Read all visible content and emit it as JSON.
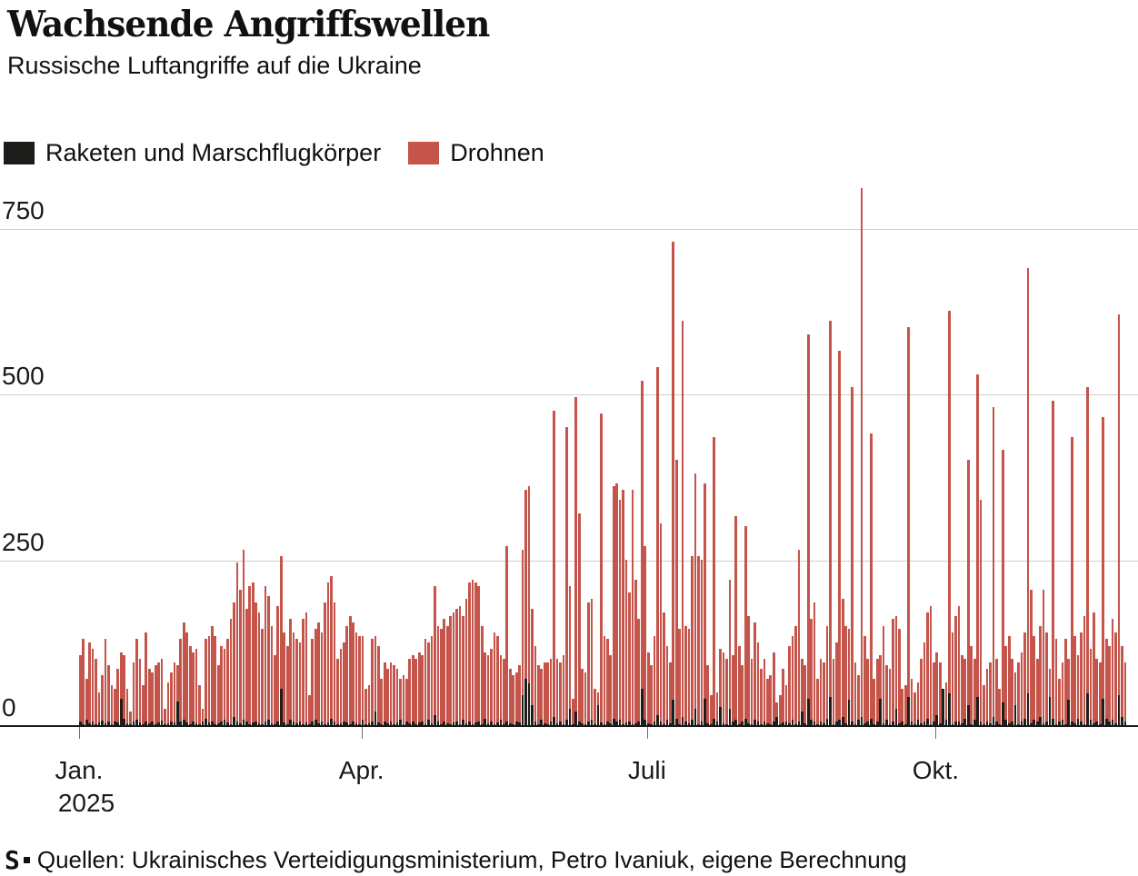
{
  "header": {
    "title": "Wachsende Angriffswellen",
    "subtitle": "Russische Luftangriffe auf die Ukraine"
  },
  "legend": {
    "items": [
      {
        "label": "Raketen und Marschflugkörper",
        "color": "#1d1d1b"
      },
      {
        "label": "Drohnen",
        "color": "#c5544b"
      }
    ]
  },
  "footer": {
    "logo": "S",
    "source_text": "Quellen: Ukrainisches Verteidigungsministerium, Petro Ivaniuk, eigene Berechnung"
  },
  "colors": {
    "drones": "#c5544b",
    "missiles": "#1d1d1b",
    "gridline": "#cfcfca",
    "axis": "#1a1a1a"
  },
  "chart_data": {
    "type": "bar",
    "title": "Wachsende Angriffswellen",
    "subtitle": "Russische Luftangriffe auf die Ukraine",
    "x_axis": {
      "unit": "day",
      "start": "2025-01-01",
      "end": "2025-11-30",
      "tick_labels": [
        "Jan.",
        "Apr.",
        "Juli",
        "Okt."
      ],
      "tick_day_indices": [
        0,
        90,
        181,
        273
      ],
      "year_label": "2025"
    },
    "y_axis": {
      "ticks": [
        0,
        250,
        500,
        750
      ],
      "max": 830,
      "label": ""
    },
    "grid": true,
    "legend_position": "top",
    "series": [
      {
        "name": "Raketen und Marschflugkörper",
        "type": "bar",
        "color": "#1d1d1b",
        "values": [
          5,
          2,
          8,
          3,
          6,
          2,
          4,
          7,
          3,
          5,
          2,
          6,
          4,
          40,
          10,
          3,
          2,
          5,
          8,
          4,
          2,
          6,
          3,
          5,
          2,
          4,
          7,
          2,
          3,
          5,
          4,
          36,
          5,
          8,
          4,
          2,
          6,
          3,
          2,
          5,
          10,
          4,
          6,
          2,
          3,
          5,
          8,
          4,
          2,
          12,
          6,
          3,
          8,
          5,
          2,
          4,
          6,
          3,
          2,
          5,
          8,
          3,
          2,
          6,
          55,
          4,
          2,
          8,
          5,
          3,
          6,
          2,
          4,
          2,
          5,
          8,
          3,
          6,
          2,
          4,
          10,
          5,
          2,
          3,
          6,
          4,
          2,
          5,
          3,
          2,
          8,
          2,
          3,
          5,
          20,
          4,
          2,
          6,
          3,
          5,
          2,
          4,
          8,
          2,
          5,
          3,
          6,
          2,
          4,
          5,
          2,
          8,
          3,
          15,
          5,
          2,
          6,
          3,
          2,
          4,
          5,
          2,
          8,
          3,
          6,
          2,
          4,
          5,
          2,
          10,
          3,
          6,
          2,
          4,
          8,
          2,
          5,
          3,
          2,
          6,
          4,
          45,
          70,
          63,
          30,
          5,
          2,
          8,
          3,
          2,
          6,
          12,
          3,
          5,
          2,
          8,
          25,
          2,
          20,
          6,
          3,
          2,
          5,
          8,
          2,
          30,
          4,
          2,
          6,
          3,
          10,
          5,
          8,
          2,
          4,
          6,
          2,
          3,
          5,
          55,
          8,
          3,
          2,
          6,
          15,
          5,
          2,
          8,
          3,
          38,
          10,
          2,
          12,
          5,
          3,
          8,
          25,
          2,
          6,
          40,
          3,
          2,
          10,
          5,
          27,
          3,
          2,
          25,
          6,
          8,
          2,
          5,
          10,
          3,
          2,
          8,
          5,
          2,
          6,
          3,
          2,
          5,
          12,
          2,
          4,
          6,
          3,
          8,
          2,
          5,
          20,
          3,
          40,
          8,
          5,
          2,
          6,
          3,
          10,
          43,
          2,
          5,
          8,
          12,
          3,
          38,
          5,
          2,
          8,
          13,
          3,
          6,
          10,
          2,
          5,
          40,
          3,
          8,
          2,
          5,
          25,
          3,
          6,
          2,
          43,
          5,
          2,
          8,
          3,
          6,
          10,
          2,
          5,
          15,
          3,
          55,
          8,
          48,
          2,
          6,
          5,
          3,
          10,
          30,
          2,
          8,
          43,
          5,
          2,
          6,
          3,
          12,
          5,
          2,
          35,
          8,
          3,
          6,
          30,
          2,
          5,
          10,
          48,
          3,
          8,
          5,
          12,
          3,
          6,
          43,
          10,
          2,
          5,
          8,
          2,
          38,
          6,
          3,
          10,
          5,
          2,
          48,
          8,
          3,
          6,
          2,
          40,
          10,
          5,
          8,
          3,
          46,
          12,
          5
        ]
      },
      {
        "name": "Drohnen",
        "type": "bar",
        "color": "#c5544b",
        "values": [
          105,
          130,
          70,
          125,
          115,
          100,
          50,
          75,
          130,
          90,
          60,
          55,
          85,
          110,
          105,
          55,
          20,
          95,
          130,
          100,
          60,
          140,
          85,
          80,
          90,
          95,
          100,
          25,
          65,
          80,
          95,
          90,
          130,
          155,
          140,
          120,
          110,
          115,
          60,
          25,
          130,
          135,
          150,
          135,
          90,
          120,
          115,
          130,
          160,
          185,
          245,
          205,
          265,
          175,
          210,
          215,
          185,
          170,
          145,
          210,
          195,
          150,
          105,
          180,
          255,
          140,
          120,
          160,
          140,
          130,
          125,
          160,
          170,
          45,
          130,
          145,
          155,
          140,
          185,
          215,
          225,
          185,
          100,
          115,
          125,
          150,
          165,
          155,
          140,
          135,
          135,
          55,
          60,
          130,
          135,
          120,
          70,
          95,
          85,
          95,
          90,
          85,
          70,
          75,
          70,
          100,
          105,
          100,
          110,
          105,
          130,
          125,
          135,
          210,
          150,
          145,
          160,
          150,
          165,
          170,
          175,
          180,
          165,
          190,
          215,
          220,
          215,
          210,
          150,
          110,
          105,
          115,
          140,
          135,
          105,
          100,
          270,
          85,
          75,
          80,
          90,
          265,
          355,
          360,
          175,
          120,
          90,
          85,
          95,
          95,
          100,
          475,
          100,
          95,
          105,
          450,
          210,
          40,
          495,
          320,
          85,
          80,
          185,
          190,
          55,
          50,
          470,
          135,
          130,
          105,
          360,
          365,
          340,
          355,
          250,
          200,
          355,
          220,
          160,
          520,
          270,
          110,
          90,
          135,
          540,
          305,
          170,
          120,
          95,
          730,
          400,
          145,
          610,
          150,
          145,
          255,
          380,
          255,
          250,
          365,
          90,
          45,
          435,
          50,
          115,
          110,
          100,
          220,
          105,
          315,
          120,
          90,
          300,
          165,
          100,
          155,
          125,
          85,
          100,
          70,
          75,
          110,
          35,
          45,
          85,
          60,
          120,
          135,
          150,
          265,
          100,
          90,
          590,
          160,
          185,
          70,
          100,
          95,
          150,
          610,
          100,
          125,
          565,
          190,
          150,
          145,
          510,
          95,
          75,
          810,
          135,
          100,
          440,
          70,
          100,
          105,
          150,
          90,
          85,
          160,
          165,
          145,
          55,
          60,
          600,
          70,
          50,
          65,
          100,
          125,
          170,
          180,
          95,
          110,
          95,
          55,
          65,
          625,
          140,
          165,
          180,
          105,
          100,
          400,
          120,
          100,
          530,
          340,
          60,
          85,
          95,
          480,
          100,
          55,
          415,
          120,
          135,
          100,
          80,
          95,
          110,
          140,
          690,
          205,
          135,
          100,
          150,
          205,
          140,
          85,
          490,
          130,
          70,
          95,
          130,
          100,
          435,
          135,
          105,
          140,
          165,
          510,
          115,
          170,
          100,
          95,
          465,
          130,
          120,
          160,
          140,
          620,
          120,
          95
        ]
      }
    ]
  }
}
